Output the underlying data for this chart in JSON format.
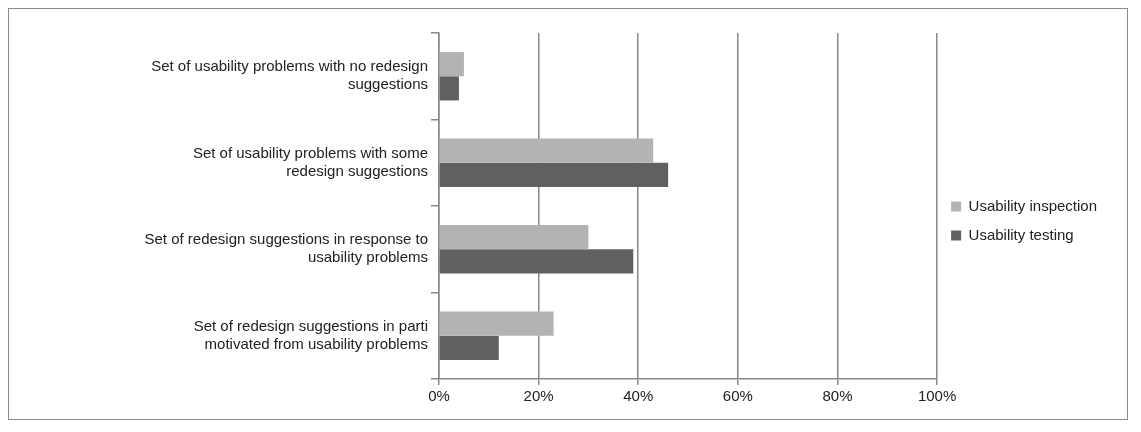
{
  "chart_data": {
    "type": "bar",
    "orientation": "horizontal",
    "categories": [
      "Set of usability problems with no redesign suggestions",
      "Set of usability problems with some redesign suggestions",
      "Set of redesign suggestions in response to usability problems",
      "Set of redesign suggestions in parti motivated from usability problems"
    ],
    "series": [
      {
        "name": "Usability inspection",
        "color": "#b3b3b3",
        "values": [
          5,
          43,
          30,
          23
        ]
      },
      {
        "name": "Usability testing",
        "color": "#606060",
        "values": [
          4,
          46,
          39,
          12
        ]
      }
    ],
    "xlim": [
      0,
      100
    ],
    "xticks": [
      {
        "value": 0,
        "label": "0%"
      },
      {
        "value": 20,
        "label": "20%"
      },
      {
        "value": 40,
        "label": "40%"
      },
      {
        "value": 60,
        "label": "60%"
      },
      {
        "value": 80,
        "label": "80%"
      },
      {
        "value": 100,
        "label": "100%"
      }
    ],
    "grid": "x",
    "legend": "right"
  }
}
